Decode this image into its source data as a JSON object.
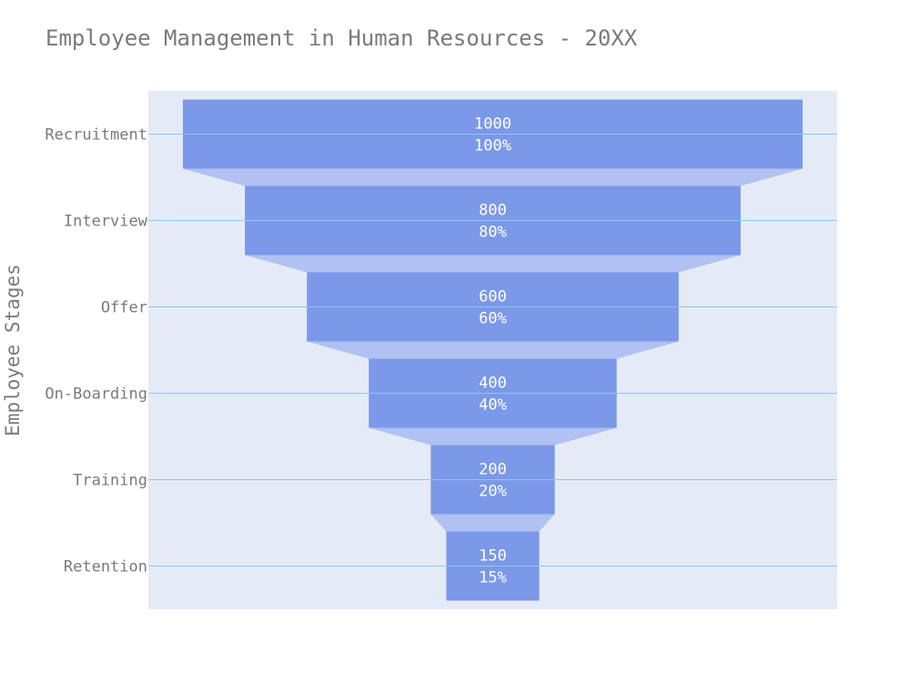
{
  "chart_data": {
    "type": "funnel",
    "title": "Employee Management in Human Resources - 20XX",
    "ylabel": "Employee Stages",
    "categories": [
      "Recruitment",
      "Interview",
      "Offer",
      "On-Boarding",
      "Training",
      "Retention"
    ],
    "values": [
      1000,
      800,
      600,
      400,
      200,
      150
    ],
    "percent_labels": [
      "100%",
      "80%",
      "60%",
      "40%",
      "20%",
      "15%"
    ],
    "colors": {
      "bar": "#7b98e9",
      "connector": "#b0c1f2",
      "plot_bg": "#e5ebf6",
      "gridline": "#8ec7f0"
    }
  }
}
